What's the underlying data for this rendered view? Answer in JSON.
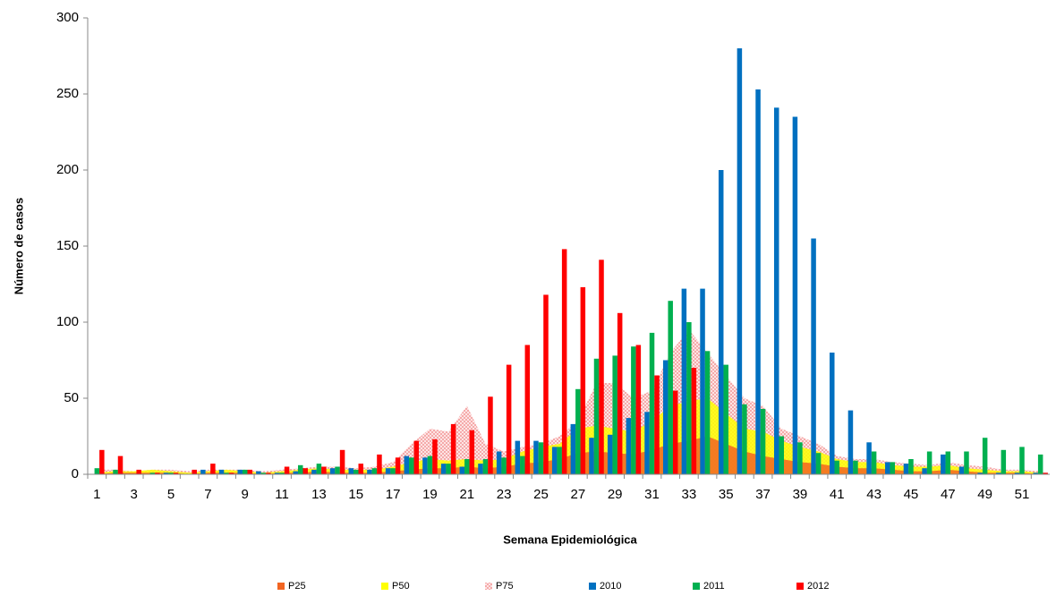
{
  "chart_data": {
    "type": "bar",
    "y_label": "Número de casos",
    "x_label": "Semana Epidemiológica",
    "categories": [
      "1",
      null,
      "3",
      null,
      "5",
      null,
      "7",
      null,
      "9",
      null,
      "11",
      null,
      "13",
      null,
      "15",
      null,
      "17",
      null,
      "19",
      null,
      "21",
      null,
      "23",
      null,
      "25",
      null,
      "27",
      null,
      "29",
      null,
      "31",
      null,
      "33",
      null,
      "35",
      null,
      "37",
      null,
      "39",
      null,
      "41",
      null,
      "43",
      null,
      "45",
      null,
      "47",
      null,
      "49",
      null,
      "51",
      null
    ],
    "ylim": [
      0,
      300
    ],
    "yticks": [
      0,
      50,
      100,
      150,
      200,
      250,
      300
    ],
    "series": [
      {
        "name": "P25",
        "type": "area",
        "color": "#f26522",
        "values": [
          0,
          1,
          1,
          1,
          1,
          0,
          1,
          1,
          1,
          0,
          1,
          1,
          2,
          1,
          1,
          1,
          2,
          3,
          4,
          4,
          5,
          4,
          5,
          7,
          8,
          10,
          14,
          15,
          14,
          13,
          16,
          20,
          22,
          25,
          20,
          15,
          12,
          10,
          8,
          7,
          5,
          4,
          4,
          3,
          2,
          2,
          3,
          2,
          1,
          1,
          1,
          0
        ]
      },
      {
        "name": "P50",
        "type": "area",
        "color": "#ffff00",
        "values": [
          1,
          2,
          2,
          3,
          2,
          1,
          2,
          3,
          2,
          1,
          2,
          3,
          4,
          3,
          3,
          3,
          5,
          8,
          10,
          9,
          10,
          9,
          10,
          15,
          18,
          20,
          30,
          32,
          30,
          28,
          35,
          45,
          48,
          50,
          40,
          30,
          28,
          22,
          18,
          15,
          10,
          8,
          8,
          6,
          5,
          5,
          6,
          4,
          3,
          2,
          2,
          1
        ]
      },
      {
        "name": "P75",
        "type": "area",
        "color": "#f4a6a6",
        "values": [
          3,
          3,
          2,
          3,
          3,
          2,
          3,
          3,
          3,
          2,
          3,
          4,
          5,
          5,
          4,
          5,
          8,
          20,
          30,
          28,
          45,
          20,
          15,
          18,
          20,
          25,
          35,
          60,
          60,
          50,
          55,
          80,
          95,
          80,
          65,
          50,
          45,
          30,
          25,
          20,
          12,
          10,
          10,
          8,
          7,
          6,
          8,
          6,
          5,
          3,
          3,
          2
        ]
      },
      {
        "name": "2010",
        "type": "bar",
        "color": "#0070c0",
        "values": [
          0,
          0,
          0,
          0,
          1,
          0,
          3,
          3,
          3,
          2,
          1,
          2,
          3,
          4,
          4,
          3,
          4,
          12,
          11,
          7,
          5,
          7,
          15,
          22,
          22,
          18,
          33,
          24,
          26,
          37,
          41,
          75,
          122,
          122,
          200,
          280,
          253,
          241,
          235,
          155,
          80,
          42,
          21,
          8,
          7,
          4,
          13,
          5,
          1,
          1,
          1,
          1
        ]
      },
      {
        "name": "2011",
        "type": "bar",
        "color": "#00b050",
        "values": [
          4,
          3,
          0,
          1,
          1,
          0,
          0,
          1,
          3,
          1,
          1,
          6,
          7,
          5,
          3,
          4,
          4,
          11,
          12,
          7,
          10,
          10,
          11,
          12,
          21,
          18,
          56,
          76,
          78,
          84,
          93,
          114,
          100,
          81,
          72,
          46,
          43,
          25,
          21,
          14,
          9,
          9,
          15,
          8,
          10,
          15,
          15,
          15,
          24,
          16,
          18,
          13
        ]
      },
      {
        "name": "2012",
        "type": "bar",
        "color": "#ff0000",
        "values": [
          16,
          12,
          3,
          1,
          1,
          3,
          7,
          1,
          3,
          1,
          5,
          4,
          5,
          16,
          7,
          13,
          11,
          22,
          23,
          33,
          29,
          51,
          72,
          85,
          118,
          148,
          123,
          141,
          106,
          85,
          65,
          55,
          70,
          0,
          0,
          0,
          0,
          0,
          0,
          0,
          0,
          0,
          0,
          0,
          0,
          0,
          0,
          0,
          0,
          0,
          0,
          1
        ]
      }
    ]
  }
}
